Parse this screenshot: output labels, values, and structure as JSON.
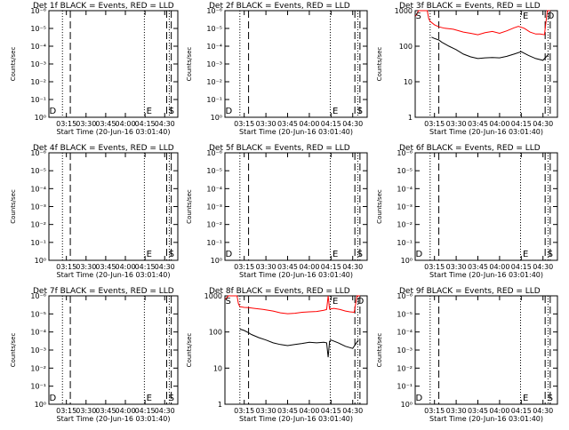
{
  "chart_data": [
    {
      "type": "line",
      "title": "Det 1f BLACK = Events, RED = LLD",
      "xlabel": "Start Time (20-Jun-16 03:01:40)",
      "ylabel": "Counts/sec",
      "yscale": "log",
      "ylim_exp": [
        0,
        6
      ],
      "ytick_labels": [
        "10⁰",
        "10⁻¹",
        "10⁻²",
        "10⁻³",
        "10⁻⁴",
        "10⁻⁵",
        "10⁻⁶"
      ],
      "xlim": [
        "03:01:40",
        "04:40:00"
      ],
      "xtick_labels": [
        "03:15",
        "03:30",
        "03:45",
        "04:00",
        "04:15",
        "04:30"
      ],
      "markers": [
        {
          "label": "D",
          "time": "03:02:00"
        },
        {
          "label": "E",
          "time": "04:16:00"
        },
        {
          "label": "S",
          "time": "04:33:00"
        }
      ],
      "dotted": [
        "03:12:00",
        "04:14:30",
        "04:33:30"
      ],
      "dashed": [
        "03:18:00",
        "04:31:30",
        "04:35:00"
      ],
      "series": []
    },
    {
      "type": "line",
      "title": "Det 2f BLACK = Events, RED = LLD",
      "xlabel": "Start Time (20-Jun-16 03:01:40)",
      "ylabel": "Counts/sec",
      "yscale": "log",
      "ylim_exp": [
        0,
        6
      ],
      "ytick_labels": [
        "10⁰",
        "10⁻¹",
        "10⁻²",
        "10⁻³",
        "10⁻⁴",
        "10⁻⁵",
        "10⁻⁶"
      ],
      "xlim": [
        "03:01:40",
        "04:40:00"
      ],
      "xtick_labels": [
        "03:15",
        "03:30",
        "03:45",
        "04:00",
        "04:15",
        "04:30"
      ],
      "markers": [
        {
          "label": "D",
          "time": "03:02:00"
        },
        {
          "label": "E",
          "time": "04:16:00"
        },
        {
          "label": "S",
          "time": "04:33:00"
        }
      ],
      "dotted": [
        "03:12:00",
        "04:14:30",
        "04:33:30"
      ],
      "dashed": [
        "03:18:00",
        "04:31:30",
        "04:35:00"
      ],
      "series": []
    },
    {
      "type": "line",
      "title": "Det 3f BLACK = Events, RED = LLD",
      "xlabel": "Start Time (20-Jun-16 03:01:40)",
      "ylabel": "Counts/sec",
      "yscale": "log",
      "ylim": [
        1,
        1000
      ],
      "ytick_labels": [
        "1",
        "10",
        "100",
        "1000"
      ],
      "xlim": [
        "03:01:40",
        "04:40:00"
      ],
      "xtick_labels": [
        "03:15",
        "03:30",
        "03:45",
        "04:00",
        "04:15",
        "04:30"
      ],
      "markers": [
        {
          "label": "S",
          "time": "03:02:00"
        },
        {
          "label": "E",
          "time": "04:16:00"
        },
        {
          "label": "D",
          "time": "04:33:00"
        }
      ],
      "dotted": [
        "03:12:00",
        "04:14:30",
        "04:33:30"
      ],
      "dashed": [
        "03:18:00",
        "04:31:30",
        "04:35:00"
      ],
      "series": [
        {
          "color": "#ff0000",
          "x": [
            "03:02",
            "03:04",
            "03:07",
            "03:10",
            "03:11",
            "03:12",
            "03:15",
            "03:18",
            "03:22",
            "03:28",
            "03:35",
            "03:40",
            "03:45",
            "03:50",
            "03:55",
            "04:00",
            "04:05",
            "04:10",
            "04:13",
            "04:17",
            "04:21",
            "04:25",
            "04:28",
            "04:31",
            "04:33",
            "04:35"
          ],
          "y": [
            700,
            1100,
            1400,
            1300,
            600,
            500,
            400,
            350,
            320,
            300,
            250,
            230,
            210,
            240,
            260,
            230,
            270,
            330,
            360,
            320,
            250,
            220,
            220,
            210,
            1000,
            1400
          ]
        },
        {
          "color": "#000000",
          "x": [
            "03:13",
            "03:15",
            "03:18",
            "03:20",
            "03:25",
            "03:30",
            "03:35",
            "03:40",
            "03:45",
            "03:50",
            "03:55",
            "04:00",
            "04:05",
            "04:10",
            "04:15",
            "04:20",
            "04:25",
            "04:30",
            "04:34"
          ],
          "y": [
            180,
            165,
            150,
            130,
            100,
            80,
            60,
            50,
            45,
            47,
            48,
            47,
            52,
            60,
            70,
            55,
            45,
            40,
            60
          ]
        }
      ]
    },
    {
      "type": "line",
      "title": "Det 4f BLACK = Events, RED = LLD",
      "xlabel": "Start Time (20-Jun-16 03:01:40)",
      "ylabel": "Counts/sec",
      "yscale": "log",
      "ylim_exp": [
        0,
        6
      ],
      "ytick_labels": [
        "10⁰",
        "10⁻¹",
        "10⁻²",
        "10⁻³",
        "10⁻⁴",
        "10⁻⁵",
        "10⁻⁶"
      ],
      "xlim": [
        "03:01:40",
        "04:40:00"
      ],
      "xtick_labels": [
        "03:15",
        "03:30",
        "03:45",
        "04:00",
        "04:15",
        "04:30"
      ],
      "markers": [
        {
          "label": "E",
          "time": "04:16:00"
        },
        {
          "label": "S",
          "time": "04:33:00"
        }
      ],
      "dotted": [
        "03:12:00",
        "04:14:30",
        "04:33:30"
      ],
      "dashed": [
        "03:18:00",
        "04:31:30",
        "04:35:00"
      ],
      "series": []
    },
    {
      "type": "line",
      "title": "Det 5f BLACK = Events, RED = LLD",
      "xlabel": "Start Time (20-Jun-16 03:01:40)",
      "ylabel": "Counts/sec",
      "yscale": "log",
      "ylim_exp": [
        0,
        6
      ],
      "ytick_labels": [
        "10⁰",
        "10⁻¹",
        "10⁻²",
        "10⁻³",
        "10⁻⁴",
        "10⁻⁵",
        "10⁻⁶"
      ],
      "xlim": [
        "03:01:40",
        "04:40:00"
      ],
      "xtick_labels": [
        "03:15",
        "03:30",
        "03:45",
        "04:00",
        "04:15",
        "04:30"
      ],
      "markers": [
        {
          "label": "D",
          "time": "03:02:00"
        },
        {
          "label": "E",
          "time": "04:16:00"
        },
        {
          "label": "S",
          "time": "04:33:00"
        }
      ],
      "dotted": [
        "03:12:00",
        "04:14:30",
        "04:33:30"
      ],
      "dashed": [
        "03:18:00",
        "04:31:30",
        "04:35:00"
      ],
      "series": []
    },
    {
      "type": "line",
      "title": "Det 6f BLACK = Events, RED = LLD",
      "xlabel": "Start Time (20-Jun-16 03:01:40)",
      "ylabel": "Counts/sec",
      "yscale": "log",
      "ylim_exp": [
        0,
        6
      ],
      "ytick_labels": [
        "10⁰",
        "10⁻¹",
        "10⁻²",
        "10⁻³",
        "10⁻⁴",
        "10⁻⁵",
        "10⁻⁶"
      ],
      "xlim": [
        "03:01:40",
        "04:40:00"
      ],
      "xtick_labels": [
        "03:15",
        "03:30",
        "03:45",
        "04:00",
        "04:15",
        "04:30"
      ],
      "markers": [
        {
          "label": "D",
          "time": "03:02:00"
        },
        {
          "label": "E",
          "time": "04:16:00"
        },
        {
          "label": "S",
          "time": "04:33:00"
        }
      ],
      "dotted": [
        "03:12:00",
        "04:14:30",
        "04:33:30"
      ],
      "dashed": [
        "03:18:00",
        "04:31:30",
        "04:35:00"
      ],
      "series": []
    },
    {
      "type": "line",
      "title": "Det 7f BLACK = Events, RED = LLD",
      "xlabel": "Start Time (20-Jun-16 03:01:40)",
      "ylabel": "Counts/sec",
      "yscale": "log",
      "ylim_exp": [
        0,
        6
      ],
      "ytick_labels": [
        "10⁰",
        "10⁻¹",
        "10⁻²",
        "10⁻³",
        "10⁻⁴",
        "10⁻⁵",
        "10⁻⁶"
      ],
      "xlim": [
        "03:01:40",
        "04:40:00"
      ],
      "xtick_labels": [
        "03:15",
        "03:30",
        "03:45",
        "04:00",
        "04:15",
        "04:30"
      ],
      "markers": [
        {
          "label": "D",
          "time": "03:02:00"
        },
        {
          "label": "E",
          "time": "04:16:00"
        },
        {
          "label": "S",
          "time": "04:33:00"
        }
      ],
      "dotted": [
        "03:12:00",
        "04:14:30",
        "04:33:30"
      ],
      "dashed": [
        "03:18:00",
        "04:31:30",
        "04:35:00"
      ],
      "series": []
    },
    {
      "type": "line",
      "title": "Det 8f BLACK = Events, RED = LLD",
      "xlabel": "Start Time (20-Jun-16 03:01:40)",
      "ylabel": "Counts/sec",
      "yscale": "log",
      "ylim": [
        1,
        1000
      ],
      "ytick_labels": [
        "1",
        "10",
        "100",
        "1000"
      ],
      "xlim": [
        "03:01:40",
        "04:40:00"
      ],
      "xtick_labels": [
        "03:15",
        "03:30",
        "03:45",
        "04:00",
        "04:15",
        "04:30"
      ],
      "markers": [
        {
          "label": "S",
          "time": "03:02:00"
        },
        {
          "label": "E",
          "time": "04:16:00"
        },
        {
          "label": "D",
          "time": "04:33:00"
        }
      ],
      "dotted": [
        "03:12:00",
        "04:14:30",
        "04:33:30"
      ],
      "dashed": [
        "03:18:00",
        "04:31:30",
        "04:35:00"
      ],
      "series": [
        {
          "color": "#ff0000",
          "x": [
            "03:02",
            "03:04",
            "03:08",
            "03:10",
            "03:11",
            "03:12",
            "03:15",
            "03:18",
            "03:22",
            "03:28",
            "03:35",
            "03:40",
            "03:45",
            "03:50",
            "03:55",
            "04:00",
            "04:05",
            "04:10",
            "04:12",
            "04:13",
            "04:14",
            "04:17",
            "04:21",
            "04:25",
            "04:28",
            "04:31",
            "04:33",
            "04:35"
          ],
          "y": [
            800,
            1300,
            1400,
            1300,
            600,
            500,
            480,
            470,
            450,
            420,
            380,
            340,
            320,
            330,
            350,
            360,
            370,
            400,
            420,
            1300,
            430,
            450,
            420,
            380,
            360,
            350,
            1000,
            1400
          ]
        },
        {
          "color": "#000000",
          "x": [
            "03:12",
            "03:15",
            "03:18",
            "03:20",
            "03:25",
            "03:30",
            "03:35",
            "03:40",
            "03:45",
            "03:50",
            "03:55",
            "04:00",
            "04:05",
            "04:10",
            "04:12",
            "04:13",
            "04:14",
            "04:15",
            "04:20",
            "04:25",
            "04:30",
            "04:34"
          ],
          "y": [
            120,
            110,
            95,
            85,
            70,
            60,
            50,
            45,
            42,
            45,
            48,
            52,
            50,
            52,
            50,
            20,
            55,
            60,
            50,
            40,
            35,
            60
          ]
        }
      ]
    },
    {
      "type": "line",
      "title": "Det 9f BLACK = Events, RED = LLD",
      "xlabel": "Start Time (20-Jun-16 03:01:40)",
      "ylabel": "Counts/sec",
      "yscale": "log",
      "ylim_exp": [
        0,
        6
      ],
      "ytick_labels": [
        "10⁰",
        "10⁻¹",
        "10⁻²",
        "10⁻³",
        "10⁻⁴",
        "10⁻⁵",
        "10⁻⁶"
      ],
      "xlim": [
        "03:01:40",
        "04:40:00"
      ],
      "xtick_labels": [
        "03:15",
        "03:30",
        "03:45",
        "04:00",
        "04:15",
        "04:30"
      ],
      "markers": [
        {
          "label": "D",
          "time": "03:02:00"
        },
        {
          "label": "E",
          "time": "04:16:00"
        },
        {
          "label": "S",
          "time": "04:33:00"
        }
      ],
      "dotted": [
        "03:12:00",
        "04:14:30",
        "04:33:30"
      ],
      "dashed": [
        "03:18:00",
        "04:31:30",
        "04:35:00"
      ],
      "series": []
    }
  ]
}
